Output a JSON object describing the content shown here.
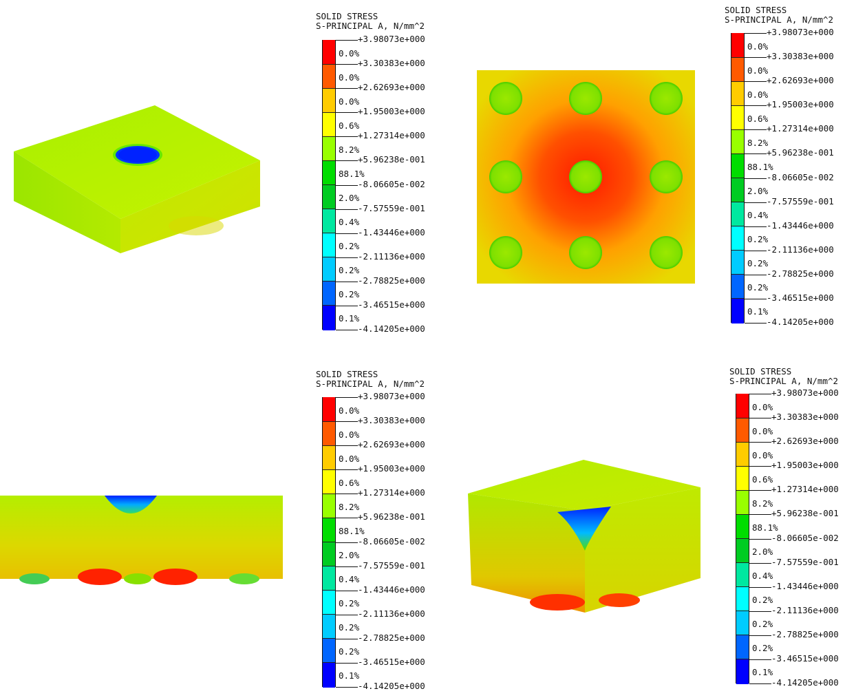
{
  "legend": {
    "title_line1": "SOLID STRESS",
    "title_line2": "S-PRINCIPAL A, N/mm^2",
    "values": [
      "+3.98073e+000",
      "+3.30383e+000",
      "+2.62693e+000",
      "+1.95003e+000",
      "+1.27314e+000",
      "+5.96238e-001",
      "-8.06605e-002",
      "-7.57559e-001",
      "-1.43446e+000",
      "-2.11136e+000",
      "-2.78825e+000",
      "-3.46515e+000",
      "-4.14205e+000"
    ],
    "percents": [
      "0.0%",
      "0.0%",
      "0.0%",
      "0.6%",
      "8.2%",
      "88.1%",
      "2.0%",
      "0.4%",
      "0.2%",
      "0.2%",
      "0.2%",
      "0.1%"
    ],
    "colors": [
      "#ff0000",
      "#ff5a00",
      "#ffcc00",
      "#ffff00",
      "#99ff00",
      "#00dd00",
      "#00cc22",
      "#00e8a0",
      "#00ffff",
      "#00ccff",
      "#0066ff",
      "#0000ff"
    ]
  },
  "views": [
    {
      "name": "isometric-view-top"
    },
    {
      "name": "plan-view"
    },
    {
      "name": "section-view"
    },
    {
      "name": "isometric-view-cut"
    }
  ]
}
